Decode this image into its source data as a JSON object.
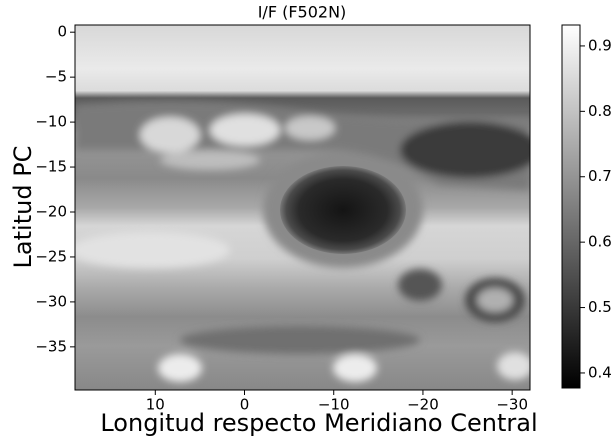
{
  "chart_data": {
    "type": "image",
    "title": "I/F (F502N)",
    "xlabel": "Longitud respecto Meridiano Central",
    "ylabel": "Latitud PC",
    "xlim": [
      19,
      -32
    ],
    "xticks": [
      10,
      0,
      {
        "value": -10,
        "label": "−10"
      },
      {
        "value": -20,
        "label": "−20"
      },
      {
        "value": -30,
        "label": "−30"
      }
    ],
    "ylim": [
      -39.8,
      0.8
    ],
    "yticks": [
      0,
      {
        "value": -5,
        "label": "−5"
      },
      {
        "value": -10,
        "label": "−10"
      },
      {
        "value": -15,
        "label": "−15"
      },
      {
        "value": -20,
        "label": "−20"
      },
      {
        "value": -25,
        "label": "−25"
      },
      {
        "value": -30,
        "label": "−30"
      },
      {
        "value": -35,
        "label": "−35"
      }
    ],
    "colorbar": {
      "lim": [
        0.377,
        0.932
      ],
      "ticks": [
        0.4,
        0.5,
        0.6,
        0.7,
        0.8,
        0.9
      ],
      "colormap": "gray"
    }
  }
}
